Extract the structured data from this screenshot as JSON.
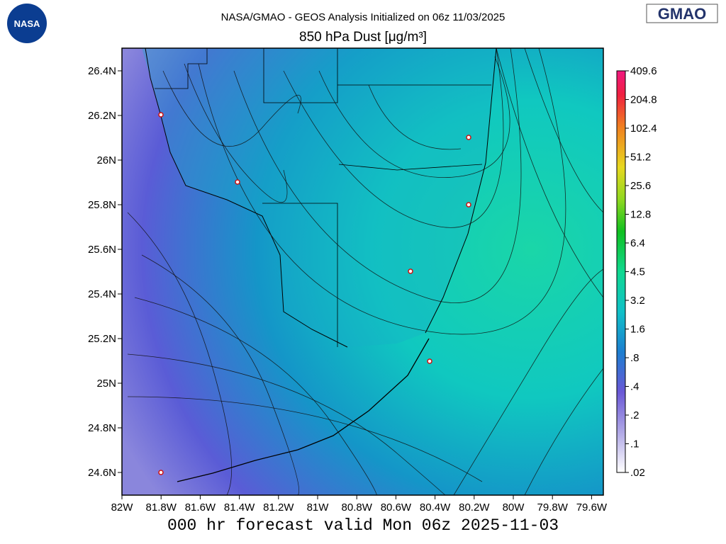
{
  "header": {
    "title": "NASA/GMAO - GEOS Analysis Initialized on 06z 11/03/2025",
    "subtitle": "850 hPa Dust [μg/m³]",
    "logo_left": "NASA",
    "logo_right": "GMAO"
  },
  "map": {
    "lat_labels": [
      "26.4N",
      "26.2N",
      "26N",
      "25.8N",
      "25.6N",
      "25.4N",
      "25.2N",
      "25N",
      "24.8N",
      "24.6N"
    ],
    "lon_labels": [
      "82W",
      "81.8W",
      "81.6W",
      "81.4W",
      "81.2W",
      "81W",
      "80.8W",
      "80.6W",
      "80.4W",
      "80.2W",
      "80W",
      "79.8W",
      "79.6W"
    ]
  },
  "colorbar": {
    "labels": [
      "409.6",
      "204.8",
      "102.4",
      "51.2",
      "25.6",
      "12.8",
      "6.4",
      "4.5",
      "3.2",
      "1.6",
      ".8",
      ".4",
      ".2",
      ".1",
      ".02"
    ]
  },
  "footer": "000 hr forecast valid Mon 06z 2025-11-03"
}
